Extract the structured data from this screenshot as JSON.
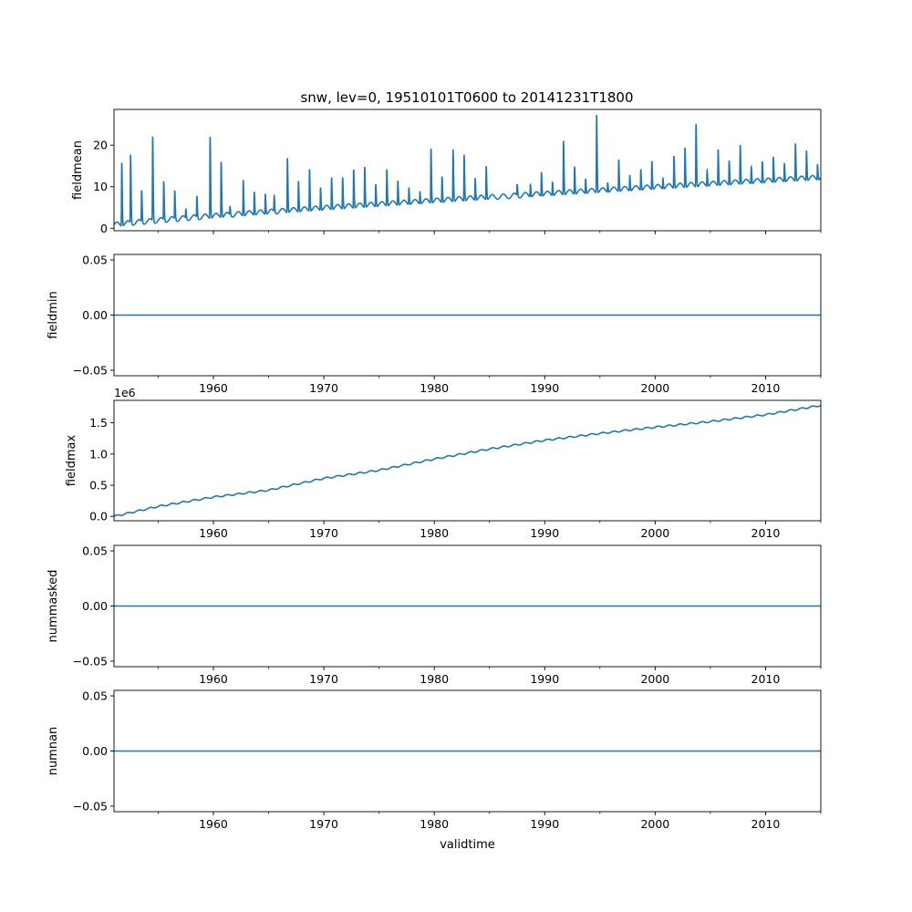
{
  "figure_title": "snw, lev=0, 19510101T0600 to 20141231T1800",
  "colors": {
    "line": "#1f77b4",
    "axis": "#000000",
    "background": "#ffffff"
  },
  "chart_data": [
    {
      "type": "line",
      "ylabel": "fieldmean",
      "xlim": [
        1951.0,
        2015.0
      ],
      "ylim": [
        -0.6,
        28.6
      ],
      "yticks": [
        0,
        10,
        20
      ],
      "ytick_labels": [
        "0",
        "10",
        "20"
      ],
      "offset_label": "",
      "xlabel": "",
      "series": [
        {
          "name": "fieldmean",
          "kind": "seasonal-spikes",
          "base_start": 0.8,
          "base_end": 12.2,
          "seasonal_amplitude": 0.6,
          "peaks": [
            {
              "x": 1951.7,
              "y": 15.8
            },
            {
              "x": 1952.5,
              "y": 17.8
            },
            {
              "x": 1953.5,
              "y": 9.2
            },
            {
              "x": 1954.5,
              "y": 22.1
            },
            {
              "x": 1955.5,
              "y": 11.3
            },
            {
              "x": 1956.5,
              "y": 9.1
            },
            {
              "x": 1957.5,
              "y": 4.6
            },
            {
              "x": 1958.5,
              "y": 7.8
            },
            {
              "x": 1959.7,
              "y": 22.1
            },
            {
              "x": 1960.7,
              "y": 16.1
            },
            {
              "x": 1961.5,
              "y": 5.2
            },
            {
              "x": 1962.7,
              "y": 11.6
            },
            {
              "x": 1963.7,
              "y": 8.8
            },
            {
              "x": 1964.7,
              "y": 8.3
            },
            {
              "x": 1965.5,
              "y": 7.8
            },
            {
              "x": 1966.7,
              "y": 16.9
            },
            {
              "x": 1967.7,
              "y": 11.4
            },
            {
              "x": 1968.7,
              "y": 14.3
            },
            {
              "x": 1969.7,
              "y": 9.8
            },
            {
              "x": 1970.7,
              "y": 12.2
            },
            {
              "x": 1971.7,
              "y": 12.3
            },
            {
              "x": 1972.7,
              "y": 14.2
            },
            {
              "x": 1973.7,
              "y": 14.8
            },
            {
              "x": 1974.7,
              "y": 10.6
            },
            {
              "x": 1975.7,
              "y": 14.2
            },
            {
              "x": 1976.7,
              "y": 11.5
            },
            {
              "x": 1977.7,
              "y": 9.8
            },
            {
              "x": 1978.7,
              "y": 8.9
            },
            {
              "x": 1979.7,
              "y": 19.2
            },
            {
              "x": 1980.7,
              "y": 12.5
            },
            {
              "x": 1981.7,
              "y": 19.0
            },
            {
              "x": 1982.7,
              "y": 17.7
            },
            {
              "x": 1983.7,
              "y": 12.1
            },
            {
              "x": 1984.7,
              "y": 15.0
            },
            {
              "x": 1987.5,
              "y": 10.6
            },
            {
              "x": 1988.7,
              "y": 10.5
            },
            {
              "x": 1989.7,
              "y": 13.5
            },
            {
              "x": 1990.7,
              "y": 11.2
            },
            {
              "x": 1991.7,
              "y": 21.1
            },
            {
              "x": 1992.7,
              "y": 14.9
            },
            {
              "x": 1993.7,
              "y": 11.9
            },
            {
              "x": 1994.7,
              "y": 27.3
            },
            {
              "x": 1995.7,
              "y": 11.0
            },
            {
              "x": 1996.7,
              "y": 16.6
            },
            {
              "x": 1997.7,
              "y": 12.8
            },
            {
              "x": 1998.7,
              "y": 14.2
            },
            {
              "x": 1999.7,
              "y": 16.2
            },
            {
              "x": 2000.7,
              "y": 12.0
            },
            {
              "x": 2001.7,
              "y": 17.4
            },
            {
              "x": 2002.7,
              "y": 19.4
            },
            {
              "x": 2003.7,
              "y": 25.2
            },
            {
              "x": 2004.7,
              "y": 14.0
            },
            {
              "x": 2005.7,
              "y": 19.0
            },
            {
              "x": 2006.7,
              "y": 16.3
            },
            {
              "x": 2007.7,
              "y": 20.1
            },
            {
              "x": 2008.7,
              "y": 14.8
            },
            {
              "x": 2009.7,
              "y": 16.1
            },
            {
              "x": 2010.7,
              "y": 17.2
            },
            {
              "x": 2011.7,
              "y": 15.7
            },
            {
              "x": 2012.7,
              "y": 20.5
            },
            {
              "x": 2013.7,
              "y": 18.7
            },
            {
              "x": 2014.7,
              "y": 15.4
            }
          ]
        }
      ]
    },
    {
      "type": "line",
      "ylabel": "fieldmin",
      "xlim": [
        1951.0,
        2015.0
      ],
      "ylim": [
        -0.055,
        0.055
      ],
      "yticks": [
        -0.05,
        0.0,
        0.05
      ],
      "ytick_labels": [
        "−0.05",
        "0.00",
        "0.05"
      ],
      "offset_label": "",
      "xlabel": "",
      "series": [
        {
          "name": "fieldmin",
          "kind": "constant",
          "value": 0.0
        }
      ]
    },
    {
      "type": "line",
      "ylabel": "fieldmax",
      "xlim": [
        1951.0,
        2015.0
      ],
      "ylim": [
        -0.07,
        1.86
      ],
      "yticks": [
        0.0,
        0.5,
        1.0,
        1.5
      ],
      "ytick_labels": [
        "0.0",
        "0.5",
        "1.0",
        "1.5"
      ],
      "offset_label": "1e6",
      "xlabel": "",
      "series": [
        {
          "name": "fieldmax",
          "kind": "cumulative-wavy",
          "wave_amplitude": 0.012,
          "points": [
            {
              "x": 1951.0,
              "y": 0.0
            },
            {
              "x": 1955.0,
              "y": 0.16
            },
            {
              "x": 1960.0,
              "y": 0.31
            },
            {
              "x": 1965.0,
              "y": 0.42
            },
            {
              "x": 1970.0,
              "y": 0.61
            },
            {
              "x": 1975.0,
              "y": 0.74
            },
            {
              "x": 1980.0,
              "y": 0.92
            },
            {
              "x": 1985.0,
              "y": 1.08
            },
            {
              "x": 1990.0,
              "y": 1.22
            },
            {
              "x": 1995.0,
              "y": 1.33
            },
            {
              "x": 2000.0,
              "y": 1.43
            },
            {
              "x": 2005.0,
              "y": 1.52
            },
            {
              "x": 2010.0,
              "y": 1.63
            },
            {
              "x": 2015.0,
              "y": 1.78
            }
          ]
        }
      ]
    },
    {
      "type": "line",
      "ylabel": "nummasked",
      "xlim": [
        1951.0,
        2015.0
      ],
      "ylim": [
        -0.055,
        0.055
      ],
      "yticks": [
        -0.05,
        0.0,
        0.05
      ],
      "ytick_labels": [
        "−0.05",
        "0.00",
        "0.05"
      ],
      "offset_label": "",
      "xlabel": "",
      "series": [
        {
          "name": "nummasked",
          "kind": "constant",
          "value": 0.0
        }
      ]
    },
    {
      "type": "line",
      "ylabel": "numnan",
      "xlim": [
        1951.0,
        2015.0
      ],
      "ylim": [
        -0.055,
        0.055
      ],
      "yticks": [
        -0.05,
        0.0,
        0.05
      ],
      "ytick_labels": [
        "−0.05",
        "0.00",
        "0.05"
      ],
      "offset_label": "",
      "xlabel": "validtime",
      "series": [
        {
          "name": "numnan",
          "kind": "constant",
          "value": 0.0
        }
      ]
    }
  ],
  "x_axis": {
    "major_ticks": [
      1960,
      1970,
      1980,
      1990,
      2000,
      2010
    ],
    "major_tick_labels": [
      "1960",
      "1970",
      "1980",
      "1990",
      "2000",
      "2010"
    ],
    "minor_ticks": [
      1955,
      1965,
      1975,
      1985,
      1995,
      2005,
      2015
    ]
  }
}
